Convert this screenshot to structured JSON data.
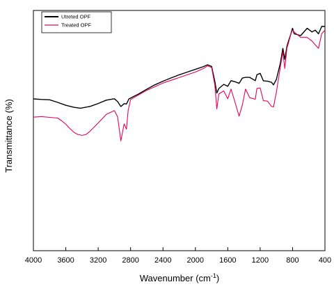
{
  "chart_data": {
    "type": "line",
    "title": "",
    "xlabel": "Wavenumber (cm",
    "xlabel_sup": "-1",
    "xlabel_close": ")",
    "ylabel": "Transmittance (%)",
    "xlim": [
      4000,
      400
    ],
    "x_reversed": true,
    "y_ticks_shown": false,
    "x_ticks": [
      "4000",
      "3600",
      "3200",
      "2800",
      "2400",
      "2000",
      "1600",
      "1200",
      "800",
      "400"
    ],
    "legend_position": "top-left",
    "series": [
      {
        "name": "Utreted OPF",
        "color": "#000000",
        "points": [
          [
            4000,
            0.603
          ],
          [
            3900,
            0.6
          ],
          [
            3800,
            0.598
          ],
          [
            3700,
            0.584
          ],
          [
            3600,
            0.568
          ],
          [
            3500,
            0.557
          ],
          [
            3420,
            0.552
          ],
          [
            3300,
            0.562
          ],
          [
            3200,
            0.578
          ],
          [
            3100,
            0.596
          ],
          [
            3000,
            0.604
          ],
          [
            2960,
            0.588
          ],
          [
            2920,
            0.561
          ],
          [
            2880,
            0.577
          ],
          [
            2851,
            0.575
          ],
          [
            2820,
            0.603
          ],
          [
            2700,
            0.63
          ],
          [
            2600,
            0.656
          ],
          [
            2500,
            0.68
          ],
          [
            2400,
            0.7
          ],
          [
            2300,
            0.718
          ],
          [
            2200,
            0.735
          ],
          [
            2100,
            0.75
          ],
          [
            2000,
            0.765
          ],
          [
            1900,
            0.78
          ],
          [
            1850,
            0.79
          ],
          [
            1800,
            0.781
          ],
          [
            1760,
            0.7
          ],
          [
            1735,
            0.635
          ],
          [
            1710,
            0.66
          ],
          [
            1650,
            0.683
          ],
          [
            1600,
            0.672
          ],
          [
            1560,
            0.703
          ],
          [
            1510,
            0.697
          ],
          [
            1460,
            0.688
          ],
          [
            1420,
            0.717
          ],
          [
            1380,
            0.721
          ],
          [
            1330,
            0.721
          ],
          [
            1260,
            0.703
          ],
          [
            1240,
            0.735
          ],
          [
            1200,
            0.743
          ],
          [
            1160,
            0.702
          ],
          [
            1110,
            0.7
          ],
          [
            1060,
            0.694
          ],
          [
            1035,
            0.68
          ],
          [
            1000,
            0.71
          ],
          [
            950,
            0.8
          ],
          [
            920,
            0.88
          ],
          [
            896,
            0.82
          ],
          [
            870,
            0.89
          ],
          [
            850,
            0.92
          ],
          [
            820,
            0.96
          ],
          [
            800,
            0.99
          ],
          [
            780,
            0.96
          ],
          [
            700,
            0.95
          ],
          [
            620,
            0.99
          ],
          [
            560,
            0.97
          ],
          [
            520,
            0.98
          ],
          [
            480,
            0.96
          ],
          [
            440,
            1.0
          ],
          [
            400,
            1.0
          ]
        ]
      },
      {
        "name": "Treated OPF",
        "color": "#e8005a",
        "points": [
          [
            4000,
            0.503
          ],
          [
            3900,
            0.506
          ],
          [
            3800,
            0.502
          ],
          [
            3700,
            0.498
          ],
          [
            3650,
            0.483
          ],
          [
            3600,
            0.464
          ],
          [
            3550,
            0.441
          ],
          [
            3500,
            0.42
          ],
          [
            3450,
            0.408
          ],
          [
            3400,
            0.403
          ],
          [
            3350,
            0.408
          ],
          [
            3300,
            0.426
          ],
          [
            3200,
            0.471
          ],
          [
            3100,
            0.518
          ],
          [
            3000,
            0.539
          ],
          [
            2960,
            0.505
          ],
          [
            2920,
            0.373
          ],
          [
            2880,
            0.466
          ],
          [
            2851,
            0.437
          ],
          [
            2830,
            0.54
          ],
          [
            2800,
            0.6
          ],
          [
            2700,
            0.625
          ],
          [
            2600,
            0.65
          ],
          [
            2500,
            0.67
          ],
          [
            2400,
            0.69
          ],
          [
            2300,
            0.705
          ],
          [
            2200,
            0.72
          ],
          [
            2100,
            0.735
          ],
          [
            2000,
            0.75
          ],
          [
            1900,
            0.77
          ],
          [
            1850,
            0.784
          ],
          [
            1800,
            0.775
          ],
          [
            1760,
            0.68
          ],
          [
            1735,
            0.548
          ],
          [
            1710,
            0.63
          ],
          [
            1650,
            0.647
          ],
          [
            1600,
            0.604
          ],
          [
            1560,
            0.657
          ],
          [
            1510,
            0.584
          ],
          [
            1460,
            0.508
          ],
          [
            1420,
            0.57
          ],
          [
            1380,
            0.657
          ],
          [
            1330,
            0.61
          ],
          [
            1260,
            0.601
          ],
          [
            1240,
            0.66
          ],
          [
            1200,
            0.663
          ],
          [
            1160,
            0.593
          ],
          [
            1110,
            0.591
          ],
          [
            1060,
            0.562
          ],
          [
            1035,
            0.559
          ],
          [
            1000,
            0.64
          ],
          [
            950,
            0.78
          ],
          [
            920,
            0.86
          ],
          [
            896,
            0.77
          ],
          [
            870,
            0.88
          ],
          [
            850,
            0.91
          ],
          [
            820,
            0.96
          ],
          [
            800,
            0.98
          ],
          [
            780,
            0.97
          ],
          [
            700,
            0.94
          ],
          [
            620,
            0.94
          ],
          [
            560,
            0.92
          ],
          [
            520,
            0.9
          ],
          [
            480,
            0.88
          ],
          [
            440,
            0.96
          ],
          [
            400,
            0.98
          ]
        ]
      }
    ]
  }
}
